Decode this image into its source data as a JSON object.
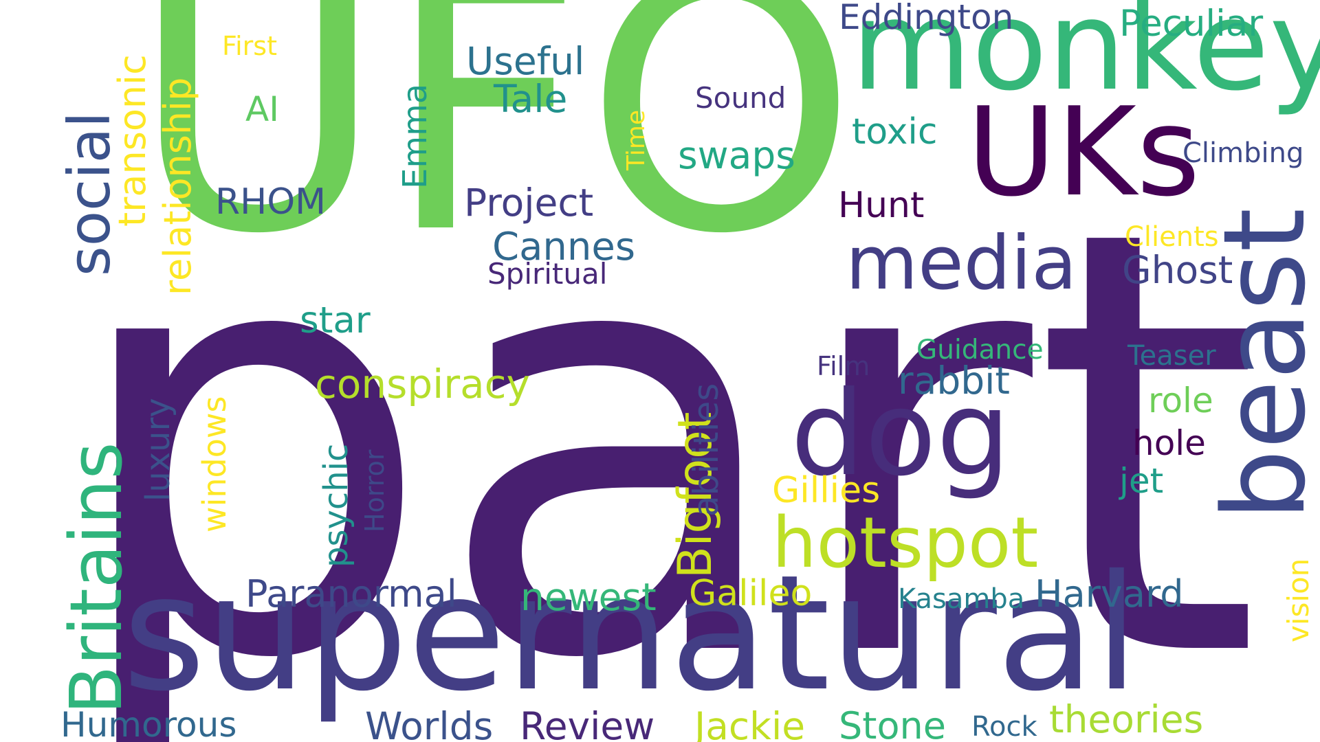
{
  "words": [
    {
      "text": "part",
      "color": "#481f70"
    },
    {
      "text": "UFO",
      "color": "#6ece58"
    },
    {
      "text": "supernatural",
      "color": "#433e85"
    },
    {
      "text": "monkey",
      "color": "#35b779"
    },
    {
      "text": "UKs",
      "color": "#440154"
    },
    {
      "text": "beast",
      "color": "#3e4989"
    },
    {
      "text": "dog",
      "color": "#472d7b"
    },
    {
      "text": "media",
      "color": "#433e85"
    },
    {
      "text": "hotspot",
      "color": "#bddf26"
    },
    {
      "text": "Britains",
      "color": "#2fb47c"
    },
    {
      "text": "social",
      "color": "#3b528b"
    },
    {
      "text": "Bigfoot",
      "color": "#d0e11c"
    },
    {
      "text": "relationship",
      "color": "#fde725"
    },
    {
      "text": "transonic",
      "color": "#fde725"
    },
    {
      "text": "Peculiar",
      "color": "#26ad81"
    },
    {
      "text": "Eddington",
      "color": "#3e4989"
    },
    {
      "text": "Useful",
      "color": "#2c728e"
    },
    {
      "text": "Tale",
      "color": "#21918c"
    },
    {
      "text": "Sound",
      "color": "#46337e"
    },
    {
      "text": "toxic",
      "color": "#1f9e89"
    },
    {
      "text": "Climbing",
      "color": "#3e4989"
    },
    {
      "text": "swaps",
      "color": "#22a884"
    },
    {
      "text": "Time",
      "color": "#fde725"
    },
    {
      "text": "Emma",
      "color": "#1f9e89"
    },
    {
      "text": "AI",
      "color": "#5ec962"
    },
    {
      "text": "First",
      "color": "#fde725"
    },
    {
      "text": "RHOM",
      "color": "#3b528b"
    },
    {
      "text": "Project",
      "color": "#433e85"
    },
    {
      "text": "Hunt",
      "color": "#440154"
    },
    {
      "text": "Cannes",
      "color": "#31688e"
    },
    {
      "text": "Spiritual",
      "color": "#482878"
    },
    {
      "text": "Clients",
      "color": "#fde725"
    },
    {
      "text": "Ghost",
      "color": "#414487"
    },
    {
      "text": "star",
      "color": "#1f9e89"
    },
    {
      "text": "conspiracy",
      "color": "#b5de2b"
    },
    {
      "text": "abilities",
      "color": "#3e4989"
    },
    {
      "text": "Guidance",
      "color": "#35b779"
    },
    {
      "text": "Film",
      "color": "#46337e"
    },
    {
      "text": "rabbit",
      "color": "#31688e"
    },
    {
      "text": "Teaser",
      "color": "#2c728e"
    },
    {
      "text": "role",
      "color": "#6ece58"
    },
    {
      "text": "hole",
      "color": "#440154"
    },
    {
      "text": "jet",
      "color": "#1f9e89"
    },
    {
      "text": "luxury",
      "color": "#3b528b"
    },
    {
      "text": "windows",
      "color": "#fde725"
    },
    {
      "text": "psychic",
      "color": "#21918c"
    },
    {
      "text": "Horror",
      "color": "#3e4989"
    },
    {
      "text": "Gillies",
      "color": "#fde725"
    },
    {
      "text": "vision",
      "color": "#fde725"
    },
    {
      "text": "Paranormal",
      "color": "#3e4989"
    },
    {
      "text": "newest",
      "color": "#35b779"
    },
    {
      "text": "Galileo",
      "color": "#d0e11c"
    },
    {
      "text": "Kasamba",
      "color": "#26828e"
    },
    {
      "text": "Harvard",
      "color": "#31688e"
    },
    {
      "text": "Humorous",
      "color": "#31688e"
    },
    {
      "text": "Worlds",
      "color": "#3b528b"
    },
    {
      "text": "Review",
      "color": "#482878"
    },
    {
      "text": "Jackie",
      "color": "#c2df23"
    },
    {
      "text": "Stone",
      "color": "#35b779"
    },
    {
      "text": "Rock",
      "color": "#31688e"
    },
    {
      "text": "theories",
      "color": "#a8db34"
    }
  ]
}
